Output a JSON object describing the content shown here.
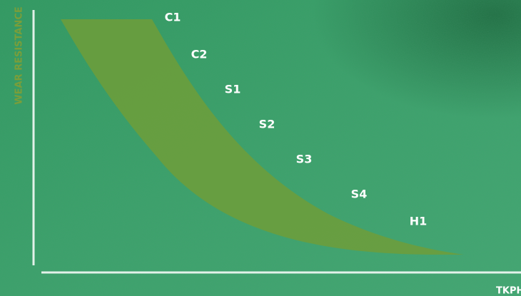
{
  "axes": {
    "y_label": "WEAR RESISTANCE",
    "x_label": "TKPH"
  },
  "grades": [
    "C1",
    "C2",
    "S1",
    "S2",
    "S3",
    "S4",
    "H1"
  ]
}
